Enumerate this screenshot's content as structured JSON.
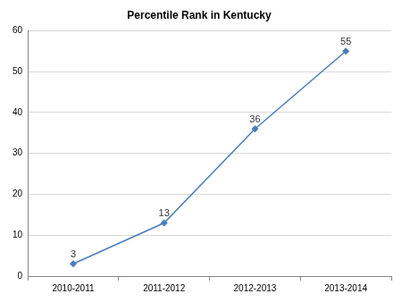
{
  "chart_data": {
    "type": "line",
    "title": "Percentile Rank in Kentucky",
    "categories": [
      "2010-2011",
      "2011-2012",
      "2012-2013",
      "2013-2014"
    ],
    "values": [
      3,
      13,
      36,
      55
    ],
    "color": "#4a7ebb",
    "marker": "diamond",
    "line_style": "solid",
    "ylim": [
      0,
      60
    ],
    "yticks": [
      0,
      10,
      20,
      30,
      40,
      50,
      60
    ],
    "grid": true,
    "data_labels": true
  }
}
